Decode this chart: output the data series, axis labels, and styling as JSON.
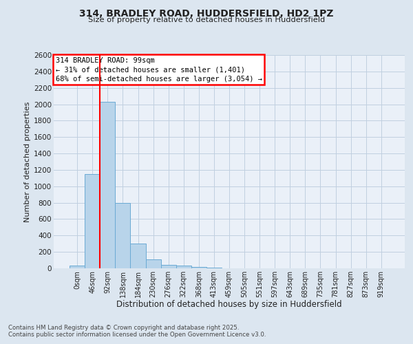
{
  "title1": "314, BRADLEY ROAD, HUDDERSFIELD, HD2 1PZ",
  "title2": "Size of property relative to detached houses in Huddersfield",
  "xlabel": "Distribution of detached houses by size in Huddersfield",
  "ylabel": "Number of detached properties",
  "bar_labels": [
    "0sqm",
    "46sqm",
    "92sqm",
    "138sqm",
    "184sqm",
    "230sqm",
    "276sqm",
    "322sqm",
    "368sqm",
    "413sqm",
    "459sqm",
    "505sqm",
    "551sqm",
    "597sqm",
    "643sqm",
    "689sqm",
    "735sqm",
    "781sqm",
    "827sqm",
    "873sqm",
    "919sqm"
  ],
  "bar_values": [
    30,
    1150,
    2030,
    800,
    300,
    105,
    45,
    35,
    20,
    10,
    0,
    0,
    0,
    0,
    0,
    0,
    0,
    0,
    0,
    0,
    0
  ],
  "bar_color": "#b8d4ea",
  "bar_edgecolor": "#6aaad4",
  "ylim": [
    0,
    2600
  ],
  "yticks": [
    0,
    200,
    400,
    600,
    800,
    1000,
    1200,
    1400,
    1600,
    1800,
    2000,
    2200,
    2400,
    2600
  ],
  "red_line_index": 2,
  "annotation_lines": [
    "314 BRADLEY ROAD: 99sqm",
    "← 31% of detached houses are smaller (1,401)",
    "68% of semi-detached houses are larger (3,054) →"
  ],
  "bg_color": "#dce6f0",
  "plot_bg_color": "#eaf0f8",
  "footer_text1": "Contains HM Land Registry data © Crown copyright and database right 2025.",
  "footer_text2": "Contains public sector information licensed under the Open Government Licence v3.0.",
  "grid_color": "#c0cfe0"
}
